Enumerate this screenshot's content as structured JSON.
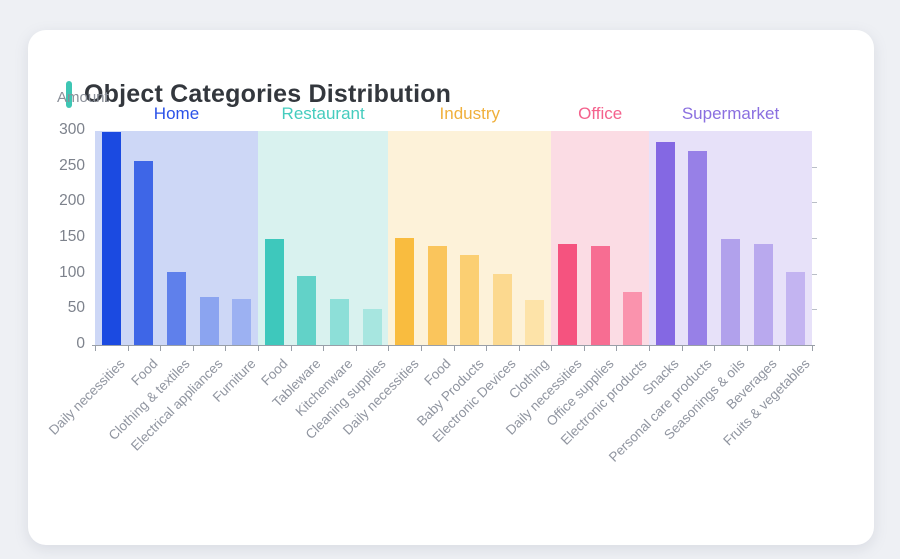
{
  "card": {
    "title": "Object Categories Distribution",
    "accent_color": "#3EC6B4"
  },
  "chart_data": {
    "type": "bar",
    "title": "Object Categories Distribution",
    "xlabel": "",
    "ylabel": "Amount",
    "ylim": [
      0,
      300
    ],
    "yticks": [
      0,
      50,
      100,
      150,
      200,
      250,
      300
    ],
    "right_axis_ticks": [
      50,
      100,
      150,
      200,
      250
    ],
    "grid": false,
    "legend_position": "group-labels-top",
    "axis_color": "#999FA8",
    "groups": [
      {
        "name": "Home",
        "label_color": "#2B52E8",
        "band_color": "#CDD7F6",
        "bars": [
          {
            "label": "Daily necessities",
            "value": 298,
            "color": "#1B4AE1"
          },
          {
            "label": "Food",
            "value": 258,
            "color": "#3E66E7"
          },
          {
            "label": "Clothing & textiles",
            "value": 102,
            "color": "#5F80EB"
          },
          {
            "label": "Electrical appliances",
            "value": 68,
            "color": "#8BA4F0"
          },
          {
            "label": "Furniture",
            "value": 64,
            "color": "#9CB1F2"
          }
        ]
      },
      {
        "name": "Restaurant",
        "label_color": "#45CCBE",
        "band_color": "#D9F2EF",
        "bars": [
          {
            "label": "Food",
            "value": 148,
            "color": "#3EC8BC"
          },
          {
            "label": "Tableware",
            "value": 97,
            "color": "#62D2C8"
          },
          {
            "label": "Kitchenware",
            "value": 65,
            "color": "#8DDFD8"
          },
          {
            "label": "Cleaning supplies",
            "value": 51,
            "color": "#A7E6E0"
          }
        ]
      },
      {
        "name": "Industry",
        "label_color": "#F0B03C",
        "band_color": "#FDF2D9",
        "bars": [
          {
            "label": "Daily necessities",
            "value": 150,
            "color": "#F9BC3F"
          },
          {
            "label": "Food",
            "value": 139,
            "color": "#FAC55C"
          },
          {
            "label": "Baby Products",
            "value": 126,
            "color": "#FBCF72"
          },
          {
            "label": "Electronic Devices",
            "value": 99,
            "color": "#FCD98F"
          },
          {
            "label": "Clothing",
            "value": 63,
            "color": "#FDE3A8"
          }
        ]
      },
      {
        "name": "Office",
        "label_color": "#F4628D",
        "band_color": "#FBDCE4",
        "bars": [
          {
            "label": "Daily necessities",
            "value": 142,
            "color": "#F5537F"
          },
          {
            "label": "Office supplies",
            "value": 139,
            "color": "#F76D92"
          },
          {
            "label": "Electronic products",
            "value": 75,
            "color": "#FA93AD"
          }
        ]
      },
      {
        "name": "Supermarket",
        "label_color": "#8A6FE0",
        "band_color": "#E7E1F9",
        "bars": [
          {
            "label": "Snacks",
            "value": 285,
            "color": "#8468E3"
          },
          {
            "label": "Personal care products",
            "value": 272,
            "color": "#9780E7"
          },
          {
            "label": "Seasonings & oils",
            "value": 149,
            "color": "#B1A1EC"
          },
          {
            "label": "Beverages",
            "value": 141,
            "color": "#B9A9EE"
          },
          {
            "label": "Fruits & vegetables",
            "value": 102,
            "color": "#C3B4F1"
          }
        ]
      }
    ]
  }
}
